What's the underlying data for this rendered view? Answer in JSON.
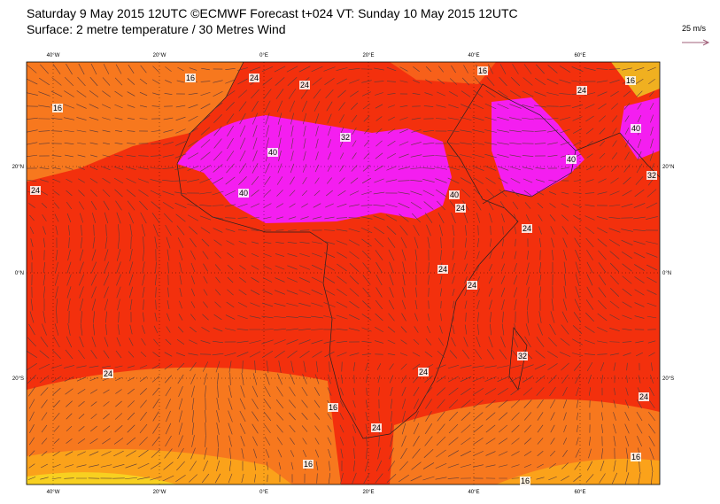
{
  "header": {
    "title": "Saturday 9 May 2015 12UTC ©ECMWF Forecast t+024 VT: Sunday 10 May 2015 12UTC",
    "subtitle": "Surface: 2 metre temperature / 30 Metres Wind",
    "scale_label": "25 m/s"
  },
  "axes": {
    "lon_labels": [
      "40°W",
      "20°W",
      "0°E",
      "20°E",
      "40°E",
      "60°E"
    ],
    "lat_labels": [
      "20°N",
      "0°N",
      "20°S"
    ]
  },
  "contour_labels": [
    "16",
    "24",
    "24",
    "16",
    "16",
    "24",
    "16",
    "40",
    "32",
    "40",
    "24",
    "40",
    "24",
    "40",
    "40",
    "32",
    "24",
    "24",
    "24",
    "24",
    "32",
    "24",
    "16",
    "24",
    "24",
    "16",
    "16",
    "16"
  ]
}
